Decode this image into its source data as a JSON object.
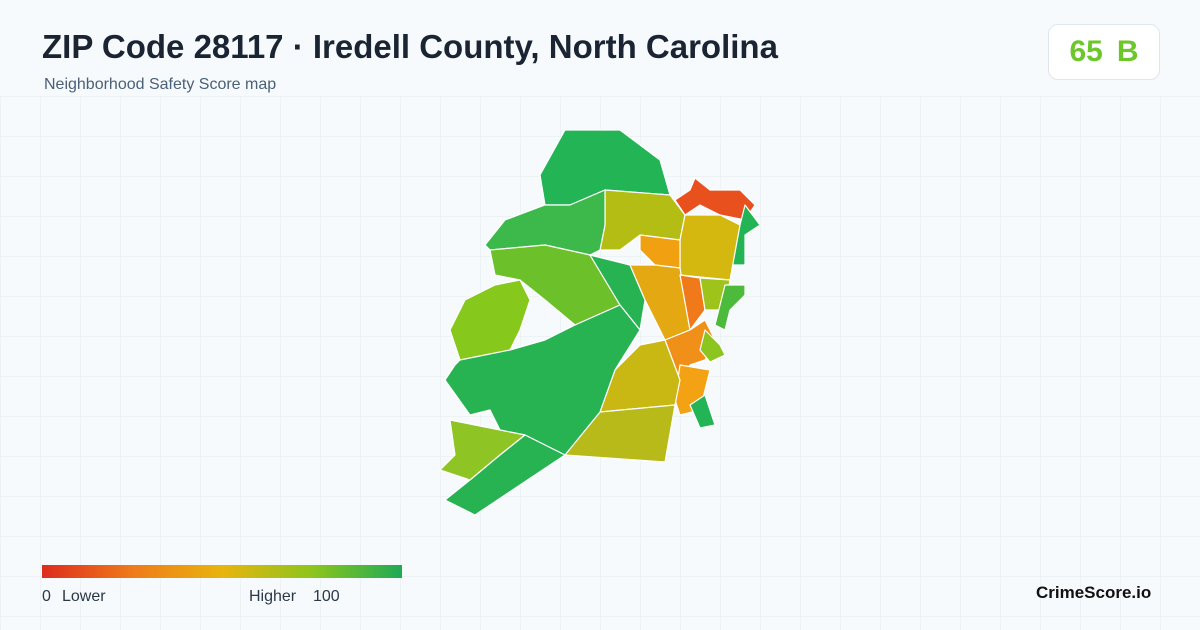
{
  "header": {
    "title": "ZIP Code 28117 · Iredell County, North Carolina",
    "subtitle": "Neighborhood Safety Score map"
  },
  "score": {
    "value": 65,
    "grade": "B"
  },
  "legend": {
    "min": 0,
    "min_label": "Lower",
    "max_label": "Higher",
    "max": 100
  },
  "brand": "CrimeScore.io"
}
